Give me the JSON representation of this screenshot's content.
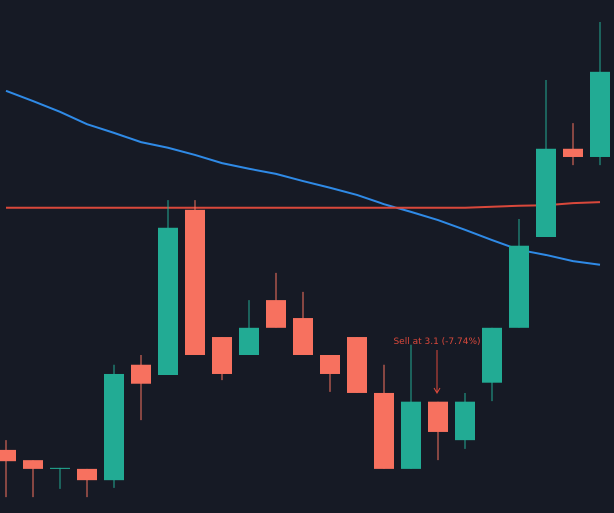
{
  "chart_data": {
    "type": "candlestick",
    "background": "#161a25",
    "up_color": "#22ab94",
    "down_color": "#f7715f",
    "ylim": [
      2.9,
      3.9
    ],
    "open": [
      3.023,
      3.003,
      2.986,
      2.986,
      2.964,
      3.189,
      3.169,
      3.491,
      3.243,
      3.208,
      3.315,
      3.28,
      3.208,
      3.243,
      3.134,
      2.986,
      3.117,
      3.042,
      3.154,
      3.261,
      3.438,
      3.61,
      3.594
    ],
    "high": [
      3.042,
      3.003,
      2.988,
      2.986,
      3.189,
      3.208,
      3.51,
      3.51,
      3.243,
      3.315,
      3.368,
      3.331,
      3.208,
      3.243,
      3.189,
      3.228,
      3.117,
      3.134,
      3.261,
      3.473,
      3.744,
      3.66,
      3.857
    ],
    "low": [
      2.931,
      2.931,
      2.947,
      2.931,
      2.949,
      3.081,
      3.169,
      3.208,
      3.159,
      3.208,
      3.261,
      3.208,
      3.136,
      3.134,
      2.986,
      2.986,
      3.003,
      3.025,
      3.118,
      3.261,
      3.438,
      3.578,
      3.578
    ],
    "close": [
      3.001,
      2.986,
      2.988,
      2.964,
      3.171,
      3.152,
      3.456,
      3.208,
      3.171,
      3.261,
      3.261,
      3.208,
      3.171,
      3.134,
      2.986,
      3.117,
      3.058,
      3.117,
      3.261,
      3.421,
      3.61,
      3.594,
      3.76
    ],
    "lines": [
      {
        "color": "#2f8ae6",
        "values": [
          3.723,
          3.703,
          3.682,
          3.658,
          3.641,
          3.623,
          3.612,
          3.598,
          3.582,
          3.571,
          3.561,
          3.547,
          3.534,
          3.52,
          3.502,
          3.487,
          3.471,
          3.452,
          3.432,
          3.413,
          3.403,
          3.391,
          3.384
        ]
      },
      {
        "color": "#d9483b",
        "values": [
          3.495,
          3.495,
          3.495,
          3.495,
          3.495,
          3.495,
          3.495,
          3.495,
          3.495,
          3.495,
          3.495,
          3.495,
          3.495,
          3.495,
          3.495,
          3.495,
          3.495,
          3.495,
          3.497,
          3.499,
          3.5,
          3.504,
          3.506
        ]
      }
    ],
    "annotations": [
      {
        "text": "Sell at 3.1 (-7.74%)",
        "color": "#d9483b"
      }
    ]
  }
}
